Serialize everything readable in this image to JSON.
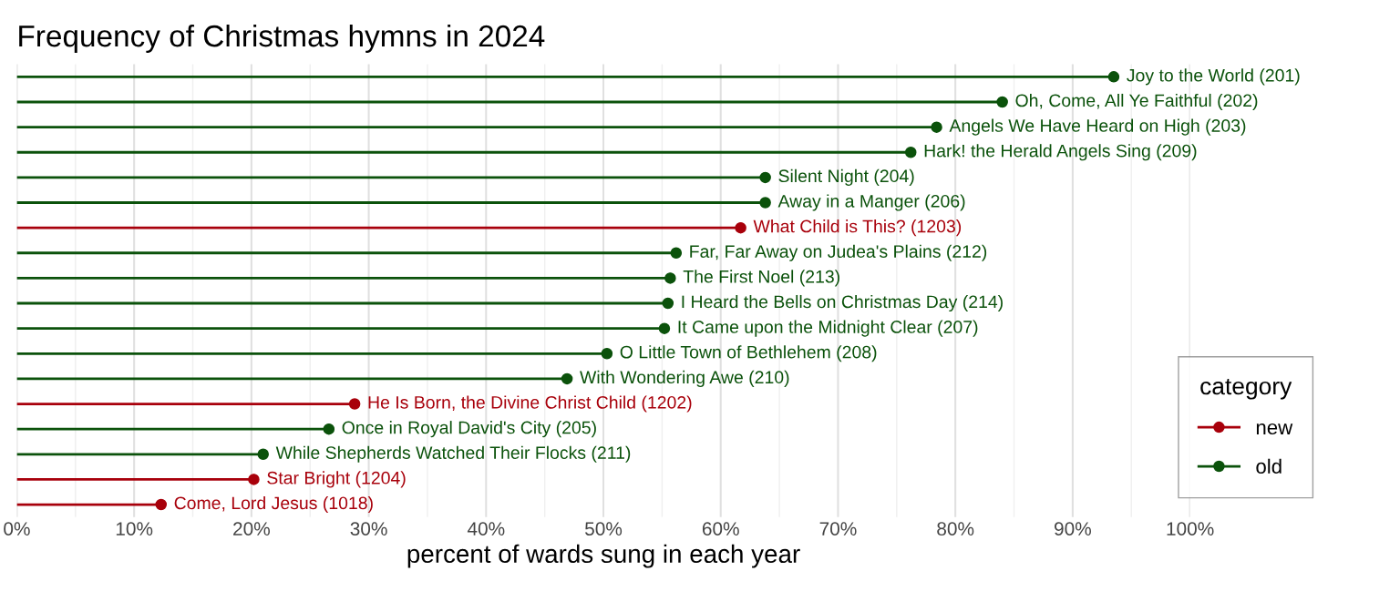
{
  "chart_data": {
    "type": "lollipop",
    "orientation": "horizontal",
    "title": "Frequency of Christmas hymns in 2024",
    "xlabel": "percent of wards sung in each year",
    "categories": [
      "Joy to the World (201)",
      "Oh, Come, All Ye Faithful (202)",
      "Angels We Have Heard on High (203)",
      "Hark! the Herald Angels Sing (209)",
      "Silent Night (204)",
      "Away in a Manger (206)",
      "What Child is This? (1203)",
      "Far, Far Away on Judea's Plains (212)",
      "The First Noel (213)",
      "I Heard the Bells on Christmas Day (214)",
      "It Came upon the Midnight Clear (207)",
      "O Little Town of Bethlehem (208)",
      "With Wondering Awe (210)",
      "He Is Born, the Divine Christ Child (1202)",
      "Once in Royal David's City (205)",
      "While Shepherds Watched Their Flocks (211)",
      "Star Bright (1204)",
      "Come, Lord Jesus (1018)"
    ],
    "series": [
      {
        "name": "new",
        "color": "#a8000b",
        "values": [
          null,
          null,
          null,
          null,
          null,
          null,
          61.7,
          null,
          null,
          null,
          null,
          null,
          null,
          28.8,
          null,
          null,
          20.2,
          12.3
        ]
      },
      {
        "name": "old",
        "color": "#0b520b",
        "values": [
          93.5,
          84.0,
          78.4,
          76.2,
          63.8,
          63.8,
          null,
          56.2,
          55.7,
          55.5,
          55.2,
          50.3,
          46.9,
          null,
          26.6,
          21.0,
          null,
          null
        ]
      }
    ],
    "xlim": [
      0,
      100
    ],
    "xticks": [
      {
        "value": 0,
        "label": "0%"
      },
      {
        "value": 10,
        "label": "10%"
      },
      {
        "value": 20,
        "label": "20%"
      },
      {
        "value": 30,
        "label": "30%"
      },
      {
        "value": 40,
        "label": "40%"
      },
      {
        "value": 50,
        "label": "50%"
      },
      {
        "value": 60,
        "label": "60%"
      },
      {
        "value": 70,
        "label": "70%"
      },
      {
        "value": 80,
        "label": "80%"
      },
      {
        "value": 90,
        "label": "90%"
      },
      {
        "value": 100,
        "label": "100%"
      }
    ],
    "tick_labels": "x",
    "grid": "x",
    "legend": "bottom right",
    "legend_title": "category",
    "marker": "circle"
  }
}
